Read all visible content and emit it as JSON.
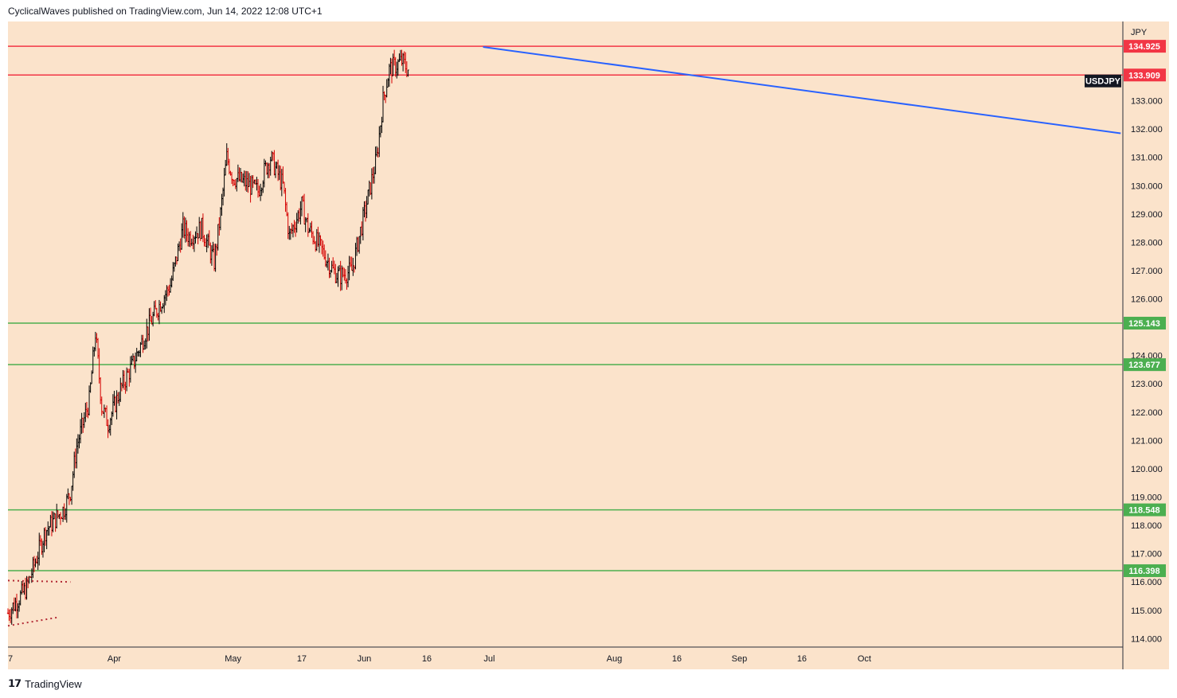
{
  "header": {
    "publisher_text": "CyclicalWaves published on TradingView.com, Jun 14, 2022 12:08 UTC+1"
  },
  "footer": {
    "brand": "TradingView"
  },
  "chart_data": {
    "type": "candlestick",
    "symbol": "USDJPY",
    "currency": "JPY",
    "background": "#fbe3cb",
    "ylim": [
      113.7,
      135.8
    ],
    "y_ticks": [
      "114.000",
      "115.000",
      "116.000",
      "117.000",
      "118.000",
      "119.000",
      "120.000",
      "121.000",
      "122.000",
      "123.000",
      "124.000",
      "126.000",
      "127.000",
      "128.000",
      "129.000",
      "130.000",
      "131.000",
      "132.000",
      "133.000"
    ],
    "x_ticks": [
      {
        "label": "7",
        "idx": 0
      },
      {
        "label": "Apr",
        "idx": 17
      },
      {
        "label": "May",
        "idx": 36
      },
      {
        "label": "17",
        "idx": 47
      },
      {
        "label": "Jun",
        "idx": 57
      },
      {
        "label": "16",
        "idx": 67
      },
      {
        "label": "Jul",
        "idx": 77
      },
      {
        "label": "Aug",
        "idx": 97
      },
      {
        "label": "16",
        "idx": 107
      },
      {
        "label": "Sep",
        "idx": 117
      },
      {
        "label": "16",
        "idx": 127
      },
      {
        "label": "Oct",
        "idx": 137
      }
    ],
    "price_waypoints": [
      [
        0,
        114.9
      ],
      [
        3,
        115.8
      ],
      [
        6,
        117.8
      ],
      [
        9,
        118.6
      ],
      [
        10,
        119.2
      ],
      [
        11,
        120.8
      ],
      [
        13,
        122.4
      ],
      [
        14,
        124.8
      ],
      [
        15,
        122.2
      ],
      [
        16,
        121.6
      ],
      [
        18,
        122.8
      ],
      [
        20,
        123.7
      ],
      [
        22,
        124.8
      ],
      [
        24,
        125.7
      ],
      [
        26,
        126.5
      ],
      [
        28,
        128.5
      ],
      [
        29,
        128.2
      ],
      [
        31,
        128.5
      ],
      [
        33,
        127.3
      ],
      [
        34,
        129.0
      ],
      [
        35,
        131.0
      ],
      [
        36,
        130.3
      ],
      [
        38,
        130.1
      ],
      [
        40,
        129.8
      ],
      [
        41,
        130.5
      ],
      [
        42,
        131.0
      ],
      [
        44,
        130.0
      ],
      [
        45,
        128.2
      ],
      [
        47,
        129.3
      ],
      [
        48,
        128.5
      ],
      [
        50,
        127.8
      ],
      [
        52,
        127.0
      ],
      [
        53,
        126.8
      ],
      [
        55,
        127.0
      ],
      [
        56,
        128.0
      ],
      [
        57,
        129.0
      ],
      [
        58,
        130.0
      ],
      [
        59,
        131.0
      ],
      [
        60,
        133.0
      ],
      [
        61,
        134.1
      ],
      [
        63,
        134.4
      ],
      [
        64,
        134.1
      ]
    ],
    "horizontal_levels": [
      {
        "value": 134.925,
        "label": "134.925",
        "color": "#f23645"
      },
      {
        "value": 133.909,
        "label": "133.909",
        "color": "#f23645"
      },
      {
        "value": 125.143,
        "label": "125.143",
        "color": "#4caf50"
      },
      {
        "value": 123.677,
        "label": "123.677",
        "color": "#4caf50"
      },
      {
        "value": 118.548,
        "label": "118.548",
        "color": "#4caf50"
      },
      {
        "value": 116.398,
        "label": "116.398",
        "color": "#4caf50"
      }
    ],
    "trend_line": {
      "color": "#2962ff",
      "from": {
        "idx": 76,
        "value": 134.9
      },
      "to": {
        "idx": 178,
        "value": 131.85
      }
    },
    "dotted_lines": [
      {
        "color": "#b22833",
        "from": {
          "idx": 0,
          "value": 116.05
        },
        "to": {
          "idx": 10,
          "value": 116.0
        }
      },
      {
        "color": "#b22833",
        "from": {
          "idx": 0,
          "value": 114.45
        },
        "to": {
          "idx": 8,
          "value": 114.75
        }
      }
    ],
    "symbol_badge": {
      "label": "USDJPY",
      "value": 133.7
    }
  }
}
